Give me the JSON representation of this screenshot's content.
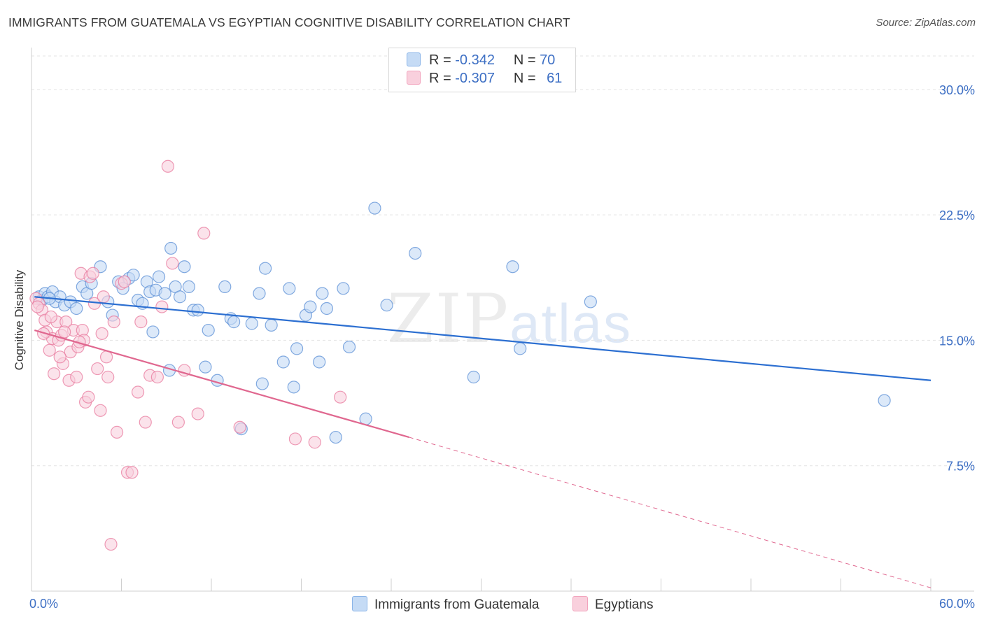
{
  "title": "IMMIGRANTS FROM GUATEMALA VS EGYPTIAN COGNITIVE DISABILITY CORRELATION CHART",
  "source": "Source: ZipAtlas.com",
  "watermark": {
    "zip": "ZIP",
    "atlas": "atlas"
  },
  "legend": {
    "r_label": "R =",
    "n_label": "N =",
    "rows": [
      {
        "r": "-0.342",
        "n": "70",
        "color": "#8ab4e8",
        "fill": "#c5dbf5"
      },
      {
        "r": "-0.307",
        "n": "61",
        "color": "#f2a3bd",
        "fill": "#f9d0dd"
      }
    ]
  },
  "bottom_legend": [
    "Immigrants from Guatemala",
    "Egyptians"
  ],
  "chart_data": {
    "type": "scatter",
    "title": "IMMIGRANTS FROM GUATEMALA VS EGYPTIAN COGNITIVE DISABILITY CORRELATION CHART",
    "ylabel": "Cognitive Disability",
    "xlabel": "",
    "xlim": [
      0,
      60
    ],
    "ylim": [
      0,
      32
    ],
    "x_tick_labels": [
      "0.0%",
      "60.0%"
    ],
    "y_ticks": [
      7.5,
      15.0,
      22.5,
      30.0
    ],
    "y_tick_labels": [
      "7.5%",
      "15.0%",
      "22.5%",
      "30.0%"
    ],
    "grid": true,
    "series": [
      {
        "name": "Immigrants from Guatemala",
        "color": "#5b8fd6",
        "fill": "#c5dbf5",
        "trend": {
          "x": [
            0.2,
            60
          ],
          "y": [
            17.6,
            12.6
          ]
        },
        "points": [
          [
            0.5,
            17.6
          ],
          [
            0.7,
            17.4
          ],
          [
            0.9,
            17.8
          ],
          [
            1.1,
            17.6
          ],
          [
            1.4,
            17.9
          ],
          [
            1.6,
            17.3
          ],
          [
            1.9,
            17.6
          ],
          [
            2.2,
            17.1
          ],
          [
            2.6,
            17.3
          ],
          [
            3.0,
            16.9
          ],
          [
            3.4,
            18.2
          ],
          [
            3.7,
            17.8
          ],
          [
            4.0,
            18.4
          ],
          [
            4.6,
            19.4
          ],
          [
            5.1,
            17.3
          ],
          [
            5.4,
            16.5
          ],
          [
            5.8,
            18.5
          ],
          [
            6.1,
            18.1
          ],
          [
            6.5,
            18.7
          ],
          [
            6.8,
            18.9
          ],
          [
            7.1,
            17.4
          ],
          [
            7.4,
            17.2
          ],
          [
            7.7,
            18.5
          ],
          [
            7.9,
            17.9
          ],
          [
            8.1,
            15.5
          ],
          [
            8.3,
            18.0
          ],
          [
            8.5,
            18.8
          ],
          [
            8.9,
            17.8
          ],
          [
            9.2,
            13.2
          ],
          [
            9.3,
            20.5
          ],
          [
            9.6,
            18.2
          ],
          [
            9.9,
            17.6
          ],
          [
            10.2,
            19.4
          ],
          [
            10.5,
            18.2
          ],
          [
            10.8,
            16.8
          ],
          [
            11.1,
            16.8
          ],
          [
            11.6,
            13.4
          ],
          [
            11.8,
            15.6
          ],
          [
            12.4,
            12.6
          ],
          [
            12.9,
            18.2
          ],
          [
            13.3,
            16.3
          ],
          [
            13.5,
            16.1
          ],
          [
            14.0,
            9.7
          ],
          [
            14.7,
            16.0
          ],
          [
            15.2,
            17.8
          ],
          [
            15.4,
            12.4
          ],
          [
            15.6,
            19.3
          ],
          [
            16.0,
            15.9
          ],
          [
            16.8,
            13.7
          ],
          [
            17.2,
            18.1
          ],
          [
            17.5,
            12.2
          ],
          [
            17.7,
            14.5
          ],
          [
            18.3,
            16.5
          ],
          [
            18.6,
            17.0
          ],
          [
            19.2,
            13.7
          ],
          [
            19.4,
            17.8
          ],
          [
            19.7,
            16.9
          ],
          [
            20.3,
            9.2
          ],
          [
            20.8,
            18.1
          ],
          [
            21.2,
            14.6
          ],
          [
            22.3,
            10.3
          ],
          [
            22.9,
            22.9
          ],
          [
            23.7,
            17.1
          ],
          [
            25.6,
            20.2
          ],
          [
            29.5,
            12.8
          ],
          [
            32.1,
            19.4
          ],
          [
            32.6,
            14.5
          ],
          [
            37.3,
            17.3
          ],
          [
            56.9,
            11.4
          ],
          [
            1.2,
            17.5
          ]
        ]
      },
      {
        "name": "Egyptians",
        "color": "#e8799e",
        "fill": "#f9d0dd",
        "trend": {
          "x": [
            0.2,
            25.2
          ],
          "y": [
            15.6,
            9.2
          ]
        },
        "trend_ext": {
          "x": [
            25.2,
            60
          ],
          "y": [
            9.2,
            0.2
          ]
        },
        "points": [
          [
            0.3,
            17.5
          ],
          [
            0.5,
            17.2
          ],
          [
            0.7,
            16.8
          ],
          [
            0.9,
            16.2
          ],
          [
            1.0,
            15.5
          ],
          [
            1.2,
            14.4
          ],
          [
            1.4,
            15.1
          ],
          [
            1.5,
            13.0
          ],
          [
            1.7,
            16.1
          ],
          [
            1.8,
            15.0
          ],
          [
            2.0,
            15.3
          ],
          [
            2.1,
            13.6
          ],
          [
            2.3,
            16.1
          ],
          [
            2.5,
            12.6
          ],
          [
            2.6,
            14.3
          ],
          [
            2.8,
            15.6
          ],
          [
            3.0,
            12.8
          ],
          [
            3.1,
            14.6
          ],
          [
            3.3,
            19.0
          ],
          [
            3.4,
            15.6
          ],
          [
            3.5,
            15.0
          ],
          [
            3.6,
            11.3
          ],
          [
            3.8,
            11.6
          ],
          [
            3.9,
            18.8
          ],
          [
            4.1,
            19.0
          ],
          [
            4.2,
            17.2
          ],
          [
            4.4,
            13.3
          ],
          [
            4.6,
            10.8
          ],
          [
            4.8,
            17.6
          ],
          [
            5.0,
            14.0
          ],
          [
            5.1,
            12.8
          ],
          [
            5.3,
            2.8
          ],
          [
            5.5,
            16.1
          ],
          [
            5.7,
            9.5
          ],
          [
            6.0,
            18.4
          ],
          [
            6.4,
            7.1
          ],
          [
            6.7,
            7.1
          ],
          [
            7.1,
            11.9
          ],
          [
            7.3,
            16.1
          ],
          [
            7.6,
            10.1
          ],
          [
            7.9,
            12.9
          ],
          [
            8.4,
            12.8
          ],
          [
            8.7,
            17.0
          ],
          [
            9.1,
            25.4
          ],
          [
            9.4,
            19.6
          ],
          [
            9.8,
            10.1
          ],
          [
            10.2,
            13.2
          ],
          [
            11.1,
            10.6
          ],
          [
            11.5,
            21.4
          ],
          [
            13.9,
            9.8
          ],
          [
            17.6,
            9.1
          ],
          [
            18.9,
            8.9
          ],
          [
            20.6,
            11.6
          ],
          [
            0.4,
            17.0
          ],
          [
            0.8,
            15.4
          ],
          [
            1.3,
            16.4
          ],
          [
            2.2,
            15.5
          ],
          [
            3.2,
            14.9
          ],
          [
            4.7,
            15.4
          ],
          [
            6.2,
            18.5
          ],
          [
            1.9,
            14.0
          ]
        ]
      }
    ]
  }
}
